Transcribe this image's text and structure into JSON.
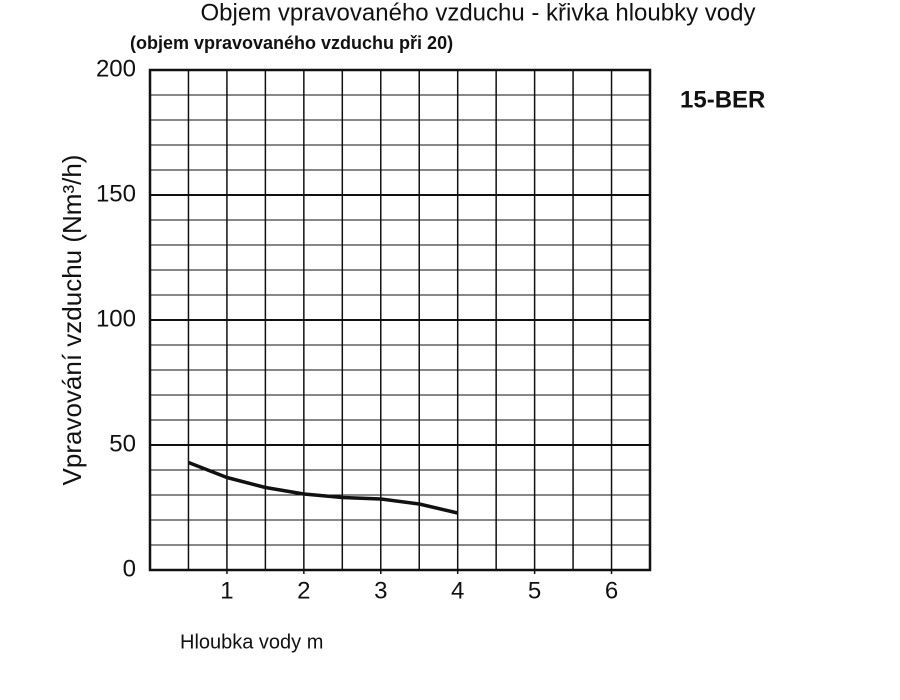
{
  "chart_data": {
    "type": "line",
    "title": "Objem vpravovaného vzduchu - křivka hloubky vody",
    "subtitle": "(objem vpravovaného vzduchu při 20)",
    "x_label": "Hloubka vody m",
    "y_label": "Vpravování vzduchu (Nm³/h)",
    "annotation": "15-BER",
    "x": [
      0.5,
      1,
      1.5,
      2,
      2.5,
      3,
      3.5,
      4
    ],
    "series": [
      {
        "color": "#111111",
        "values": [
          43,
          37,
          33,
          30.4,
          29,
          28.4,
          26.4,
          22.8
        ]
      }
    ],
    "xlim": [
      0,
      6.5
    ],
    "ylim": [
      0,
      200
    ],
    "xticks": [
      1,
      2,
      3,
      4,
      5,
      6
    ],
    "yticks": [
      0,
      50,
      100,
      150,
      200
    ],
    "xgrid": [
      0.5,
      1,
      1.5,
      2,
      2.5,
      3,
      3.5,
      4,
      4.5,
      5,
      5.5,
      6
    ],
    "ygrid": [
      10,
      20,
      30,
      40,
      60,
      70,
      80,
      90,
      110,
      120,
      130,
      140,
      160,
      170,
      180,
      190
    ],
    "grid": true
  }
}
